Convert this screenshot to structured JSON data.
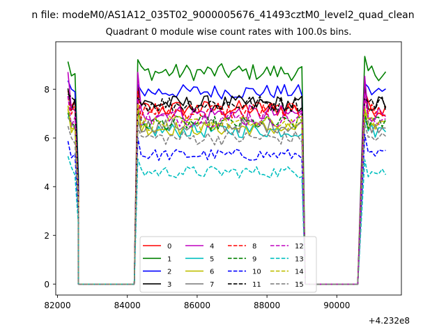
{
  "suptitle": "n file: modeM0/AS1A12_035T02_9000005676_41493cztM0_level2_quad_clean",
  "chart_data": {
    "type": "line",
    "title": "Quadrant 0 module wise count rates with 100.0s bins.",
    "xlabel": "",
    "ylabel": "",
    "x_offset_label": "+4.232e8",
    "xlim": [
      81950,
      91850
    ],
    "ylim": [
      -0.45,
      9.95
    ],
    "xticks": [
      82000,
      84000,
      86000,
      88000,
      90000
    ],
    "xtick_labels": [
      "82000",
      "84000",
      "86000",
      "88000",
      "90000"
    ],
    "yticks": [
      0,
      2,
      4,
      6,
      8
    ],
    "ytick_labels": [
      "0",
      "2",
      "4",
      "6",
      "8"
    ],
    "grid": false,
    "legend_position": "lower center",
    "segments": [
      {
        "start": 82300,
        "points": 4
      },
      {
        "start": 84300,
        "points": 48
      },
      {
        "start": 90800,
        "points": 7
      }
    ],
    "gaps": [
      {
        "x_from": 82600,
        "x_to": 84200
      },
      {
        "x_from": 89100,
        "x_to": 90600
      }
    ],
    "series": [
      {
        "name": "0",
        "color": "#ff0000",
        "dash": "solid",
        "level": 7.2,
        "edge": 8.0,
        "noise": 0.35
      },
      {
        "name": "1",
        "color": "#008000",
        "dash": "solid",
        "level": 8.7,
        "edge": 9.2,
        "noise": 0.35
      },
      {
        "name": "2",
        "color": "#0000ff",
        "dash": "solid",
        "level": 7.9,
        "edge": 8.3,
        "noise": 0.3
      },
      {
        "name": "3",
        "color": "#000000",
        "dash": "solid",
        "level": 7.4,
        "edge": 8.1,
        "noise": 0.35
      },
      {
        "name": "4",
        "color": "#bf00bf",
        "dash": "solid",
        "level": 7.0,
        "edge": 8.6,
        "noise": 0.35
      },
      {
        "name": "5",
        "color": "#00bfbf",
        "dash": "solid",
        "level": 6.3,
        "edge": 7.0,
        "noise": 0.3
      },
      {
        "name": "6",
        "color": "#bfbf00",
        "dash": "solid",
        "level": 6.4,
        "edge": 7.3,
        "noise": 0.3
      },
      {
        "name": "7",
        "color": "#808080",
        "dash": "solid",
        "level": 6.5,
        "edge": 6.8,
        "noise": 0.3
      },
      {
        "name": "8",
        "color": "#ff0000",
        "dash": "dashed",
        "level": 7.1,
        "edge": 7.8,
        "noise": 0.35
      },
      {
        "name": "9",
        "color": "#008000",
        "dash": "dashed",
        "level": 6.6,
        "edge": 7.0,
        "noise": 0.3
      },
      {
        "name": "10",
        "color": "#0000ff",
        "dash": "dashed",
        "level": 5.3,
        "edge": 6.0,
        "noise": 0.25
      },
      {
        "name": "11",
        "color": "#000000",
        "dash": "dashed",
        "level": 7.4,
        "edge": 7.8,
        "noise": 0.35
      },
      {
        "name": "12",
        "color": "#bf00bf",
        "dash": "dashed",
        "level": 6.8,
        "edge": 7.7,
        "noise": 0.35
      },
      {
        "name": "13",
        "color": "#00bfbf",
        "dash": "dashed",
        "level": 4.6,
        "edge": 5.2,
        "noise": 0.25
      },
      {
        "name": "14",
        "color": "#bfbf00",
        "dash": "dashed",
        "level": 6.6,
        "edge": 7.3,
        "noise": 0.3
      },
      {
        "name": "15",
        "color": "#808080",
        "dash": "dashed",
        "level": 6.0,
        "edge": 6.5,
        "noise": 0.3
      }
    ]
  }
}
